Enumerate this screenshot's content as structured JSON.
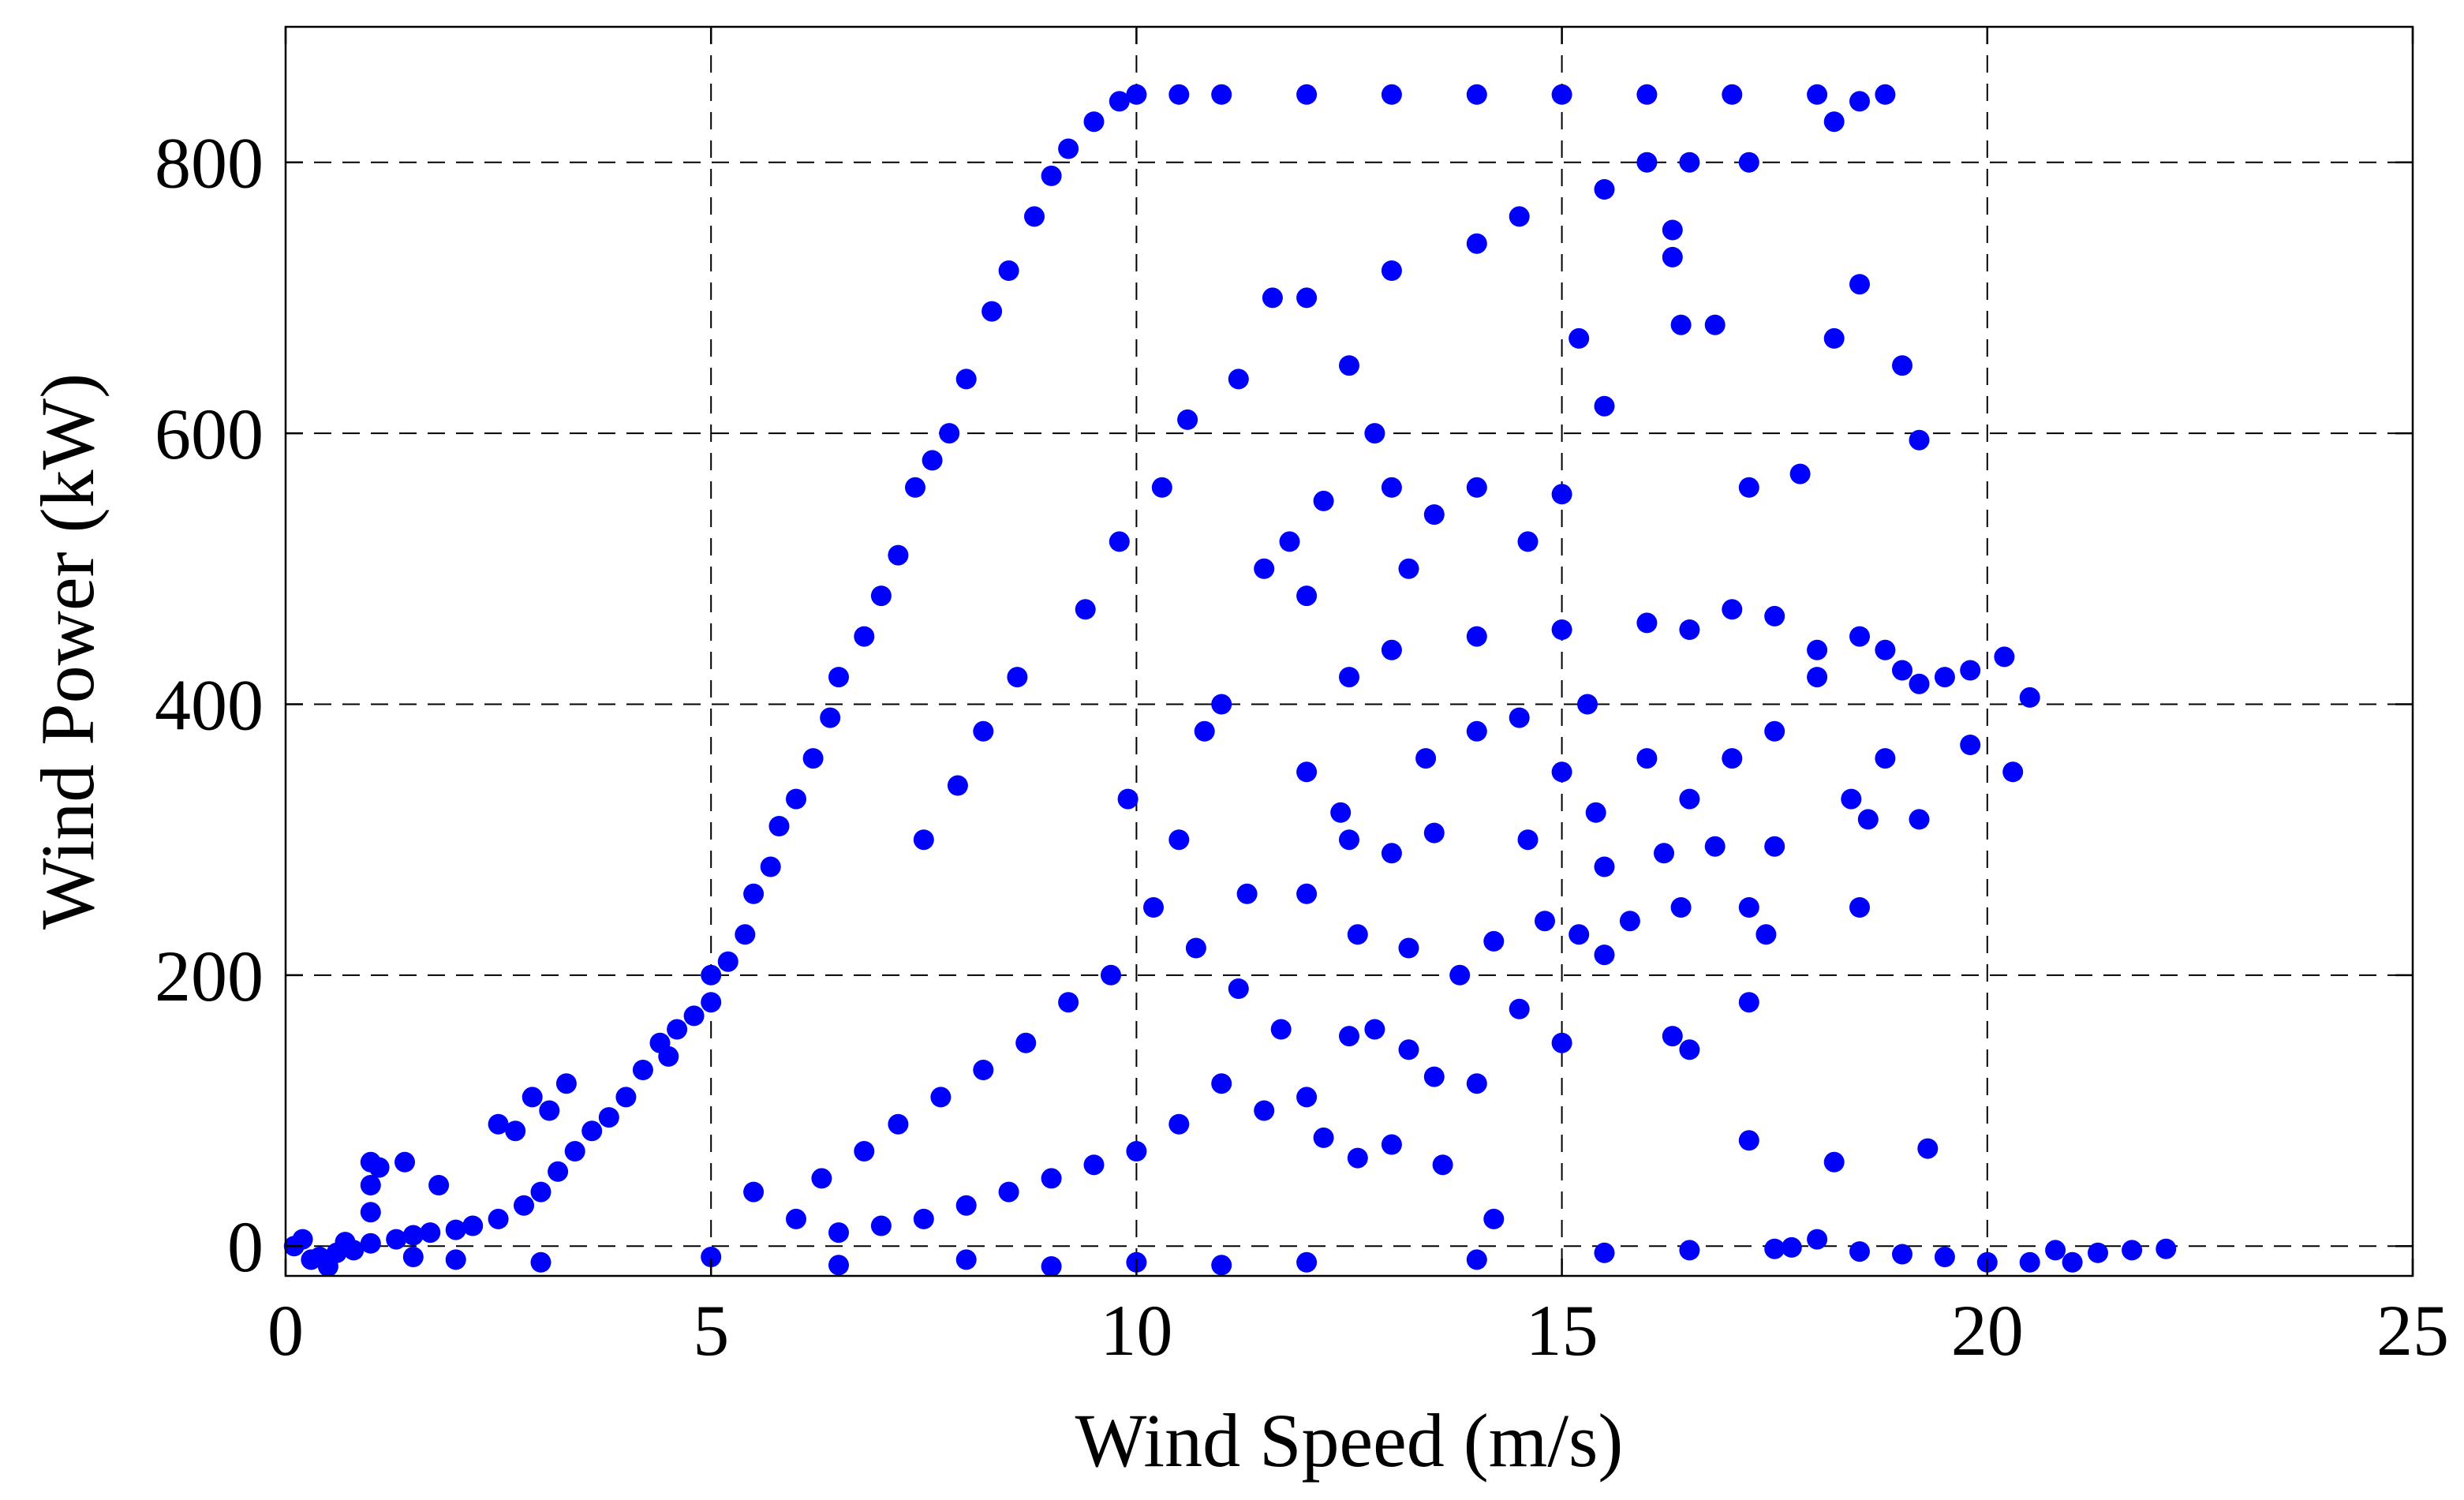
{
  "chart_data": {
    "type": "scatter",
    "title": "",
    "xlabel": "Wind Speed (m/s)",
    "ylabel": "Wind Power (kW)",
    "xlim": [
      0,
      25
    ],
    "ylim": [
      -22,
      900
    ],
    "xticks": [
      0,
      5,
      10,
      15,
      20,
      25
    ],
    "yticks": [
      0,
      200,
      400,
      600,
      800
    ],
    "grid": true,
    "grid_style": "dashed",
    "legend": "none",
    "marker": "filled-circle",
    "colors": {
      "points": "#0000ff",
      "axes": "#000000",
      "grid": "#000000",
      "background": "#ffffff"
    },
    "series": [
      {
        "points": [
          [
            0.3,
            -10
          ],
          [
            0.4,
            -8
          ],
          [
            0.6,
            -5
          ],
          [
            0.8,
            -3
          ],
          [
            1.0,
            2
          ],
          [
            1.0,
            25
          ],
          [
            1.0,
            45
          ],
          [
            1.0,
            62
          ],
          [
            1.1,
            58
          ],
          [
            1.4,
            62
          ],
          [
            1.3,
            5
          ],
          [
            1.5,
            8
          ],
          [
            1.8,
            45
          ],
          [
            1.7,
            10
          ],
          [
            2.0,
            12
          ],
          [
            2.2,
            15
          ],
          [
            2.5,
            20
          ],
          [
            2.5,
            90
          ],
          [
            2.7,
            85
          ],
          [
            2.8,
            30
          ],
          [
            2.9,
            110
          ],
          [
            3.0,
            40
          ],
          [
            3.1,
            100
          ],
          [
            3.2,
            55
          ],
          [
            3.3,
            120
          ],
          [
            3.4,
            70
          ],
          [
            3.6,
            85
          ],
          [
            3.8,
            95
          ],
          [
            4.0,
            110
          ],
          [
            4.2,
            130
          ],
          [
            4.4,
            150
          ],
          [
            4.5,
            140
          ],
          [
            4.6,
            160
          ],
          [
            4.8,
            170
          ],
          [
            5.0,
            180
          ],
          [
            5.0,
            200
          ],
          [
            5.2,
            210
          ],
          [
            5.4,
            230
          ],
          [
            5.5,
            260
          ],
          [
            5.7,
            280
          ],
          [
            5.8,
            310
          ],
          [
            6.0,
            330
          ],
          [
            6.2,
            360
          ],
          [
            6.4,
            390
          ],
          [
            6.5,
            420
          ],
          [
            6.8,
            450
          ],
          [
            7.0,
            480
          ],
          [
            7.2,
            510
          ],
          [
            7.4,
            560
          ],
          [
            7.6,
            580
          ],
          [
            7.8,
            600
          ],
          [
            8.0,
            640
          ],
          [
            8.3,
            690
          ],
          [
            8.5,
            720
          ],
          [
            8.8,
            760
          ],
          [
            9.0,
            790
          ],
          [
            9.2,
            810
          ],
          [
            9.5,
            830
          ],
          [
            9.8,
            845
          ],
          [
            10.0,
            850
          ],
          [
            10.5,
            850
          ],
          [
            11.0,
            850
          ],
          [
            12.0,
            850
          ],
          [
            13.0,
            850
          ],
          [
            14.0,
            850
          ],
          [
            15.0,
            850
          ],
          [
            16.0,
            850
          ],
          [
            17.0,
            850
          ],
          [
            18.0,
            850
          ],
          [
            18.8,
            850
          ],
          [
            18.5,
            845
          ],
          [
            18.2,
            830
          ],
          [
            17.2,
            800
          ],
          [
            16.5,
            800
          ],
          [
            16.0,
            800
          ],
          [
            15.5,
            780
          ],
          [
            14.5,
            760
          ],
          [
            14.0,
            740
          ],
          [
            13.0,
            720
          ],
          [
            12.0,
            700
          ],
          [
            12.0,
            350
          ],
          [
            12.5,
            300
          ],
          [
            13.0,
            290
          ],
          [
            13.5,
            305
          ],
          [
            12.5,
            420
          ],
          [
            13.0,
            440
          ],
          [
            14.0,
            450
          ],
          [
            15.0,
            455
          ],
          [
            16.0,
            460
          ],
          [
            16.5,
            455
          ],
          [
            17.0,
            470
          ],
          [
            17.5,
            465
          ],
          [
            18.0,
            440
          ],
          [
            18.5,
            450
          ],
          [
            18.8,
            440
          ],
          [
            19.0,
            425
          ],
          [
            19.2,
            415
          ],
          [
            19.5,
            420
          ],
          [
            19.8,
            425
          ],
          [
            20.2,
            435
          ],
          [
            20.5,
            405
          ],
          [
            19.2,
            595
          ],
          [
            19.0,
            650
          ],
          [
            18.5,
            710
          ],
          [
            18.2,
            670
          ],
          [
            17.8,
            570
          ],
          [
            17.2,
            560
          ],
          [
            16.8,
            680
          ],
          [
            16.4,
            680
          ],
          [
            16.3,
            730
          ],
          [
            16.3,
            750
          ],
          [
            15.5,
            620
          ],
          [
            15.2,
            670
          ],
          [
            15.0,
            555
          ],
          [
            14.6,
            520
          ],
          [
            14.0,
            560
          ],
          [
            13.5,
            540
          ],
          [
            13.0,
            560
          ],
          [
            12.8,
            600
          ],
          [
            12.5,
            650
          ],
          [
            20.3,
            350
          ],
          [
            19.8,
            370
          ],
          [
            19.2,
            315
          ],
          [
            18.6,
            315
          ],
          [
            18.5,
            250
          ],
          [
            17.5,
            295
          ],
          [
            17.2,
            250
          ],
          [
            17.2,
            180
          ],
          [
            17.2,
            78
          ],
          [
            18.2,
            62
          ],
          [
            19.3,
            72
          ],
          [
            16.5,
            145
          ],
          [
            16.3,
            155
          ],
          [
            15.5,
            215
          ],
          [
            15.5,
            280
          ],
          [
            15.0,
            150
          ],
          [
            14.5,
            175
          ],
          [
            14.0,
            120
          ],
          [
            13.5,
            125
          ],
          [
            13.2,
            145
          ],
          [
            12.8,
            160
          ],
          [
            12.5,
            155
          ],
          [
            12.0,
            110
          ],
          [
            11.5,
            100
          ],
          [
            11.0,
            120
          ],
          [
            10.5,
            90
          ],
          [
            10.0,
            70
          ],
          [
            9.5,
            60
          ],
          [
            9.0,
            50
          ],
          [
            8.5,
            40
          ],
          [
            8.0,
            30
          ],
          [
            7.5,
            20
          ],
          [
            7.0,
            15
          ],
          [
            6.5,
            10
          ],
          [
            6.0,
            20
          ],
          [
            5.5,
            40
          ],
          [
            14.2,
            20
          ],
          [
            13.6,
            60
          ],
          [
            13.0,
            75
          ],
          [
            12.6,
            65
          ],
          [
            12.2,
            80
          ],
          [
            11.7,
            160
          ],
          [
            11.2,
            190
          ],
          [
            10.7,
            220
          ],
          [
            10.2,
            250
          ],
          [
            9.7,
            200
          ],
          [
            9.2,
            180
          ],
          [
            8.7,
            150
          ],
          [
            8.2,
            130
          ],
          [
            7.7,
            110
          ],
          [
            7.2,
            90
          ],
          [
            6.8,
            70
          ],
          [
            6.3,
            50
          ],
          [
            11.0,
            400
          ],
          [
            10.8,
            380
          ],
          [
            11.5,
            500
          ],
          [
            11.8,
            520
          ],
          [
            12.2,
            550
          ],
          [
            12.0,
            480
          ],
          [
            13.2,
            500
          ],
          [
            14.0,
            380
          ],
          [
            14.5,
            390
          ],
          [
            15.0,
            350
          ],
          [
            15.3,
            400
          ],
          [
            16.0,
            360
          ],
          [
            16.5,
            330
          ],
          [
            17.0,
            360
          ],
          [
            17.5,
            380
          ],
          [
            18.0,
            420
          ],
          [
            18.8,
            360
          ],
          [
            16.8,
            295
          ],
          [
            16.2,
            290
          ],
          [
            15.8,
            240
          ],
          [
            15.2,
            230
          ],
          [
            14.8,
            240
          ],
          [
            14.2,
            225
          ],
          [
            13.8,
            200
          ],
          [
            13.2,
            220
          ],
          [
            12.6,
            230
          ],
          [
            12.0,
            260
          ],
          [
            5.0,
            -8
          ],
          [
            8.0,
            -10
          ],
          [
            10.0,
            -12
          ],
          [
            12.0,
            -12
          ],
          [
            14.0,
            -10
          ],
          [
            15.5,
            -5
          ],
          [
            16.5,
            -3
          ],
          [
            17.5,
            -2
          ],
          [
            18.0,
            5
          ],
          [
            18.5,
            -4
          ],
          [
            19.0,
            -6
          ],
          [
            19.5,
            -8
          ],
          [
            20.0,
            -12
          ],
          [
            20.5,
            -12
          ],
          [
            20.8,
            -3
          ],
          [
            21.0,
            -12
          ],
          [
            21.3,
            -5
          ],
          [
            21.7,
            -3
          ],
          [
            22.1,
            -2
          ],
          [
            17.7,
            -1
          ],
          [
            3.0,
            -12
          ],
          [
            2.0,
            -10
          ],
          [
            1.5,
            -8
          ],
          [
            0.5,
            -15
          ],
          [
            0.1,
            0
          ],
          [
            0.2,
            5
          ],
          [
            0.7,
            3
          ],
          [
            6.5,
            -14
          ],
          [
            9.0,
            -15
          ],
          [
            11.0,
            -14
          ],
          [
            9.4,
            470
          ],
          [
            9.8,
            520
          ],
          [
            10.3,
            560
          ],
          [
            10.6,
            610
          ],
          [
            11.2,
            640
          ],
          [
            11.6,
            700
          ],
          [
            8.6,
            420
          ],
          [
            8.2,
            380
          ],
          [
            7.9,
            340
          ],
          [
            7.5,
            300
          ],
          [
            9.9,
            330
          ],
          [
            10.5,
            300
          ],
          [
            11.3,
            260
          ],
          [
            12.4,
            320
          ],
          [
            13.4,
            360
          ],
          [
            14.6,
            300
          ],
          [
            15.4,
            320
          ],
          [
            16.4,
            250
          ],
          [
            17.4,
            230
          ],
          [
            18.4,
            330
          ]
        ]
      }
    ]
  }
}
